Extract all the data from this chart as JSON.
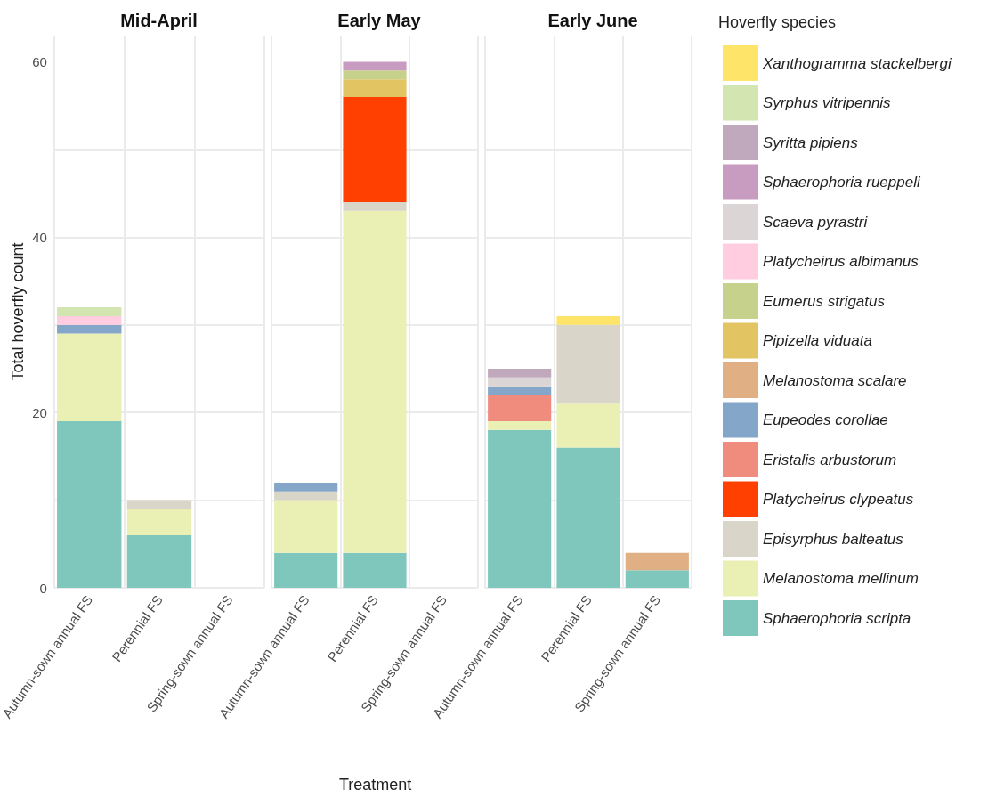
{
  "chart_data": [
    {
      "type": "bar",
      "stacked": true,
      "title": "Mid-April",
      "ylabel": "Total hoverfly count",
      "categories": [
        "Autumn-sown annual FS",
        "Perennial FS",
        "Spring-sown annual FS"
      ],
      "ylim": [
        0,
        63
      ],
      "yticks": [
        0,
        {
          "value": 10,
          "label": null
        },
        20,
        {
          "value": 30,
          "label": null
        },
        40,
        {
          "value": 50,
          "label": null
        },
        60
      ],
      "grid": true,
      "legend": false,
      "series": [
        {
          "color": "#7fc6bc",
          "values": [
            19,
            6,
            0
          ]
        },
        {
          "color": "#eaf0b4",
          "values": [
            10,
            3,
            0
          ]
        },
        {
          "color": "#d9d5c8",
          "values": [
            0,
            1,
            0
          ]
        },
        {
          "color": "#ff4000",
          "values": [
            0,
            0,
            0
          ]
        },
        {
          "color": "#f08c7e",
          "values": [
            0,
            0,
            0
          ]
        },
        {
          "color": "#84a6c8",
          "values": [
            1,
            0,
            0
          ]
        },
        {
          "color": "#e0b084",
          "values": [
            0,
            0,
            0
          ]
        },
        {
          "color": "#e2c462",
          "values": [
            0,
            0,
            0
          ]
        },
        {
          "color": "#c6d18c",
          "values": [
            0,
            0,
            0
          ]
        },
        {
          "color": "#ffcce0",
          "values": [
            1,
            0,
            0
          ]
        },
        {
          "color": "#dcd5d5",
          "values": [
            0,
            0,
            0
          ]
        },
        {
          "color": "#c89bc0",
          "values": [
            0,
            0,
            0
          ]
        },
        {
          "color": "#c1a9bd",
          "values": [
            0,
            0,
            0
          ]
        },
        {
          "color": "#d3e5b0",
          "values": [
            1,
            0,
            0
          ]
        },
        {
          "color": "#ffe46a",
          "values": [
            0,
            0,
            0
          ]
        }
      ]
    },
    {
      "type": "bar",
      "stacked": true,
      "title": "Early May",
      "xlabel": "Treatment",
      "categories": [
        "Autumn-sown annual FS",
        "Perennial FS",
        "Spring-sown annual FS"
      ],
      "ylim": [
        0,
        63
      ],
      "yticks": [
        0,
        {
          "value": 10,
          "label": null
        },
        20,
        {
          "value": 30,
          "label": null
        },
        40,
        {
          "value": 50,
          "label": null
        },
        60
      ],
      "grid": true,
      "legend": false,
      "tick_labels": "x",
      "series": [
        {
          "color": "#7fc6bc",
          "values": [
            4,
            4,
            0
          ]
        },
        {
          "color": "#eaf0b4",
          "values": [
            6,
            39,
            0
          ]
        },
        {
          "color": "#d9d5c8",
          "values": [
            1,
            1,
            0
          ]
        },
        {
          "color": "#ff4000",
          "values": [
            0,
            12,
            0
          ]
        },
        {
          "color": "#f08c7e",
          "values": [
            0,
            0,
            0
          ]
        },
        {
          "color": "#84a6c8",
          "values": [
            1,
            0,
            0
          ]
        },
        {
          "color": "#e0b084",
          "values": [
            0,
            0,
            0
          ]
        },
        {
          "color": "#e2c462",
          "values": [
            0,
            2,
            0
          ]
        },
        {
          "color": "#c6d18c",
          "values": [
            0,
            1,
            0
          ]
        },
        {
          "color": "#ffcce0",
          "values": [
            0,
            0,
            0
          ]
        },
        {
          "color": "#dcd5d5",
          "values": [
            0,
            0,
            0
          ]
        },
        {
          "color": "#c89bc0",
          "values": [
            0,
            1,
            0
          ]
        },
        {
          "color": "#c1a9bd",
          "values": [
            0,
            0,
            0
          ]
        },
        {
          "color": "#d3e5b0",
          "values": [
            0,
            0,
            0
          ]
        },
        {
          "color": "#ffe46a",
          "values": [
            0,
            0,
            0
          ]
        }
      ]
    },
    {
      "type": "bar",
      "stacked": true,
      "title": "Early June",
      "legend_title": "Hoverfly species",
      "categories": [
        "Autumn-sown annual FS",
        "Perennial FS",
        "Spring-sown annual FS"
      ],
      "ylim": [
        0,
        63
      ],
      "yticks": [
        0,
        {
          "value": 10,
          "label": null
        },
        20,
        {
          "value": 30,
          "label": null
        },
        40,
        {
          "value": 50,
          "label": null
        },
        60
      ],
      "grid": true,
      "legend": "right",
      "tick_labels": "x",
      "series": [
        {
          "name": "Sphaerophoria scripta",
          "color": "#7fc6bc",
          "values": [
            18,
            16,
            2
          ]
        },
        {
          "name": "Melanostoma mellinum",
          "color": "#eaf0b4",
          "values": [
            1,
            5,
            0
          ]
        },
        {
          "name": "Episyrphus balteatus",
          "color": "#d9d5c8",
          "values": [
            0,
            9,
            0
          ]
        },
        {
          "name": "Platycheirus clypeatus",
          "color": "#ff4000",
          "values": [
            0,
            0,
            0
          ]
        },
        {
          "name": "Eristalis arbustorum",
          "color": "#f08c7e",
          "values": [
            3,
            0,
            0
          ]
        },
        {
          "name": "Eupeodes corollae",
          "color": "#84a6c8",
          "values": [
            1,
            0,
            0
          ]
        },
        {
          "name": "Melanostoma scalare",
          "color": "#e0b084",
          "values": [
            0,
            0,
            2
          ]
        },
        {
          "name": "Pipizella viduata",
          "color": "#e2c462",
          "values": [
            0,
            0,
            0
          ]
        },
        {
          "name": "Eumerus strigatus",
          "color": "#c6d18c",
          "values": [
            0,
            0,
            0
          ]
        },
        {
          "name": "Platycheirus albimanus",
          "color": "#ffcce0",
          "values": [
            0,
            0,
            0
          ]
        },
        {
          "name": "Scaeva pyrastri",
          "color": "#dcd5d5",
          "values": [
            1,
            0,
            0
          ]
        },
        {
          "name": "Sphaerophoria rueppeli",
          "color": "#c89bc0",
          "values": [
            0,
            0,
            0
          ]
        },
        {
          "name": "Syritta pipiens",
          "color": "#c1a9bd",
          "values": [
            1,
            0,
            0
          ]
        },
        {
          "name": "Syrphus vitripennis",
          "color": "#d3e5b0",
          "values": [
            0,
            0,
            0
          ]
        },
        {
          "name": "Xanthogramma stackelbergi",
          "color": "#ffe46a",
          "values": [
            0,
            1,
            0
          ]
        }
      ]
    }
  ]
}
